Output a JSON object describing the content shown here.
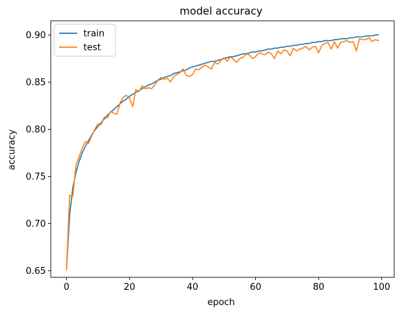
{
  "chart_data": {
    "type": "line",
    "title": "model accuracy",
    "xlabel": "epoch",
    "ylabel": "accuracy",
    "xlim": [
      -5,
      104
    ],
    "ylim": [
      0.643,
      0.915
    ],
    "x_ticks": [
      0,
      20,
      40,
      60,
      80,
      100
    ],
    "x_tick_labels": [
      "0",
      "20",
      "40",
      "60",
      "80",
      "100"
    ],
    "y_ticks": [
      0.65,
      0.7,
      0.75,
      0.8,
      0.85,
      0.9
    ],
    "y_tick_labels": [
      "0.65",
      "0.70",
      "0.75",
      "0.80",
      "0.85",
      "0.90"
    ],
    "grid": false,
    "legend_position": "top-left",
    "series": [
      {
        "name": "train",
        "color": "#1f77b4",
        "x": [
          0,
          1,
          2,
          3,
          4,
          5,
          6,
          7,
          8,
          9,
          10,
          11,
          12,
          13,
          14,
          15,
          16,
          17,
          18,
          19,
          20,
          21,
          22,
          23,
          24,
          25,
          26,
          27,
          28,
          29,
          30,
          31,
          32,
          33,
          34,
          35,
          36,
          37,
          38,
          39,
          40,
          41,
          42,
          43,
          44,
          45,
          46,
          47,
          48,
          49,
          50,
          51,
          52,
          53,
          54,
          55,
          56,
          57,
          58,
          59,
          60,
          61,
          62,
          63,
          64,
          65,
          66,
          67,
          68,
          69,
          70,
          71,
          72,
          73,
          74,
          75,
          76,
          77,
          78,
          79,
          80,
          81,
          82,
          83,
          84,
          85,
          86,
          87,
          88,
          89,
          90,
          91,
          92,
          93,
          94,
          95,
          96,
          97,
          98,
          99
        ],
        "values": [
          0.652,
          0.709,
          0.738,
          0.754,
          0.766,
          0.775,
          0.782,
          0.788,
          0.794,
          0.799,
          0.803,
          0.807,
          0.811,
          0.815,
          0.818,
          0.821,
          0.824,
          0.827,
          0.83,
          0.832,
          0.835,
          0.837,
          0.839,
          0.841,
          0.843,
          0.845,
          0.847,
          0.848,
          0.85,
          0.852,
          0.853,
          0.855,
          0.856,
          0.857,
          0.859,
          0.86,
          0.861,
          0.862,
          0.863,
          0.865,
          0.866,
          0.867,
          0.868,
          0.869,
          0.87,
          0.871,
          0.872,
          0.872,
          0.873,
          0.874,
          0.875,
          0.876,
          0.877,
          0.877,
          0.878,
          0.879,
          0.88,
          0.88,
          0.881,
          0.882,
          0.882,
          0.883,
          0.883,
          0.884,
          0.885,
          0.885,
          0.886,
          0.886,
          0.887,
          0.887,
          0.888,
          0.888,
          0.889,
          0.889,
          0.89,
          0.89,
          0.891,
          0.891,
          0.892,
          0.892,
          0.893,
          0.893,
          0.894,
          0.894,
          0.894,
          0.895,
          0.895,
          0.896,
          0.896,
          0.896,
          0.897,
          0.897,
          0.898,
          0.898,
          0.898,
          0.899,
          0.899,
          0.899,
          0.9,
          0.9
        ]
      },
      {
        "name": "test",
        "color": "#ff7f0e",
        "x": [
          0,
          1,
          2,
          3,
          4,
          5,
          6,
          7,
          8,
          9,
          10,
          11,
          12,
          13,
          14,
          15,
          16,
          17,
          18,
          19,
          20,
          21,
          22,
          23,
          24,
          25,
          26,
          27,
          28,
          29,
          30,
          31,
          32,
          33,
          34,
          35,
          36,
          37,
          38,
          39,
          40,
          41,
          42,
          43,
          44,
          45,
          46,
          47,
          48,
          49,
          50,
          51,
          52,
          53,
          54,
          55,
          56,
          57,
          58,
          59,
          60,
          61,
          62,
          63,
          64,
          65,
          66,
          67,
          68,
          69,
          70,
          71,
          72,
          73,
          74,
          75,
          76,
          77,
          78,
          79,
          80,
          81,
          82,
          83,
          84,
          85,
          86,
          87,
          88,
          89,
          90,
          91,
          92,
          93,
          94,
          95,
          96,
          97,
          98,
          99
        ],
        "values": [
          0.651,
          0.73,
          0.729,
          0.762,
          0.771,
          0.78,
          0.787,
          0.785,
          0.793,
          0.8,
          0.806,
          0.805,
          0.813,
          0.812,
          0.819,
          0.817,
          0.816,
          0.828,
          0.834,
          0.836,
          0.833,
          0.824,
          0.842,
          0.84,
          0.846,
          0.843,
          0.844,
          0.843,
          0.847,
          0.852,
          0.855,
          0.853,
          0.854,
          0.85,
          0.856,
          0.858,
          0.86,
          0.864,
          0.857,
          0.856,
          0.858,
          0.864,
          0.863,
          0.866,
          0.868,
          0.866,
          0.864,
          0.871,
          0.869,
          0.873,
          0.876,
          0.872,
          0.877,
          0.874,
          0.871,
          0.875,
          0.876,
          0.88,
          0.879,
          0.875,
          0.877,
          0.881,
          0.88,
          0.879,
          0.882,
          0.88,
          0.875,
          0.883,
          0.88,
          0.884,
          0.883,
          0.878,
          0.886,
          0.883,
          0.885,
          0.886,
          0.888,
          0.884,
          0.887,
          0.888,
          0.881,
          0.889,
          0.891,
          0.892,
          0.885,
          0.893,
          0.886,
          0.892,
          0.893,
          0.894,
          0.892,
          0.893,
          0.883,
          0.896,
          0.895,
          0.895,
          0.897,
          0.893,
          0.895,
          0.894
        ]
      }
    ]
  }
}
